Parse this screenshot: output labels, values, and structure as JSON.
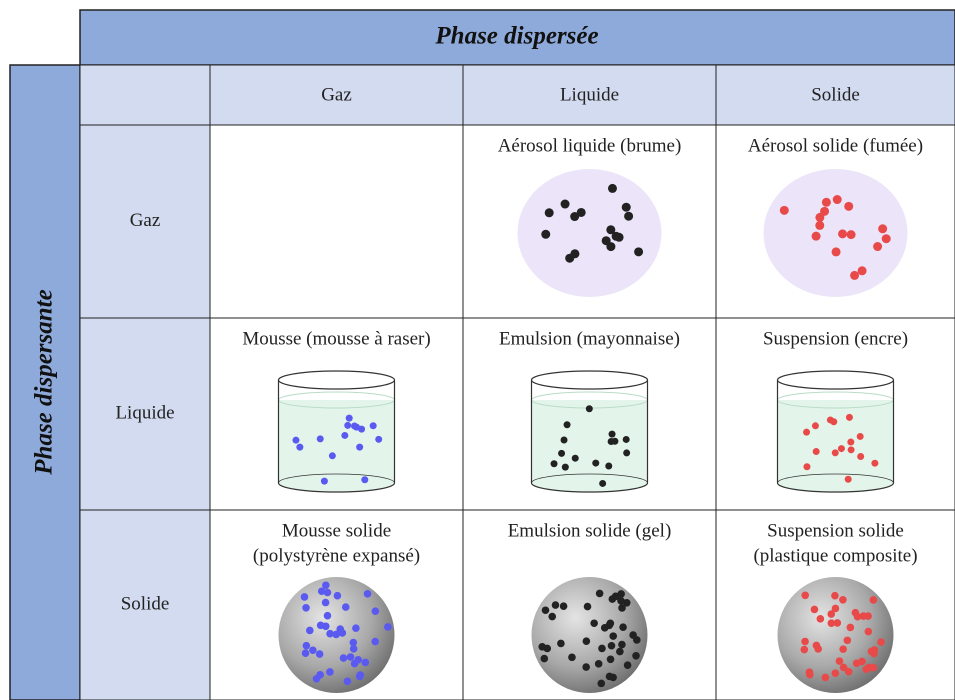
{
  "header": {
    "title": "Phase dispersée",
    "side_title": "Phase dispersante"
  },
  "columns": [
    "Gaz",
    "Liquide",
    "Solide"
  ],
  "rows": [
    {
      "label": "Gaz",
      "cells": [
        null,
        [
          "Aérosol liquide (brume)"
        ],
        [
          "Aérosol solide (fumée)"
        ]
      ]
    },
    {
      "label": "Liquide",
      "cells": [
        [
          "Mousse (mousse à raser)"
        ],
        [
          "Emulsion (mayonnaise)"
        ],
        [
          "Suspension (encre)"
        ]
      ]
    },
    {
      "label": "Solide",
      "cells": [
        [
          "Mousse solide",
          "(polystyrène expansé)"
        ],
        [
          "Emulsion solide (gel)"
        ],
        [
          "Suspension solide",
          "(plastique composite)"
        ]
      ]
    }
  ]
}
